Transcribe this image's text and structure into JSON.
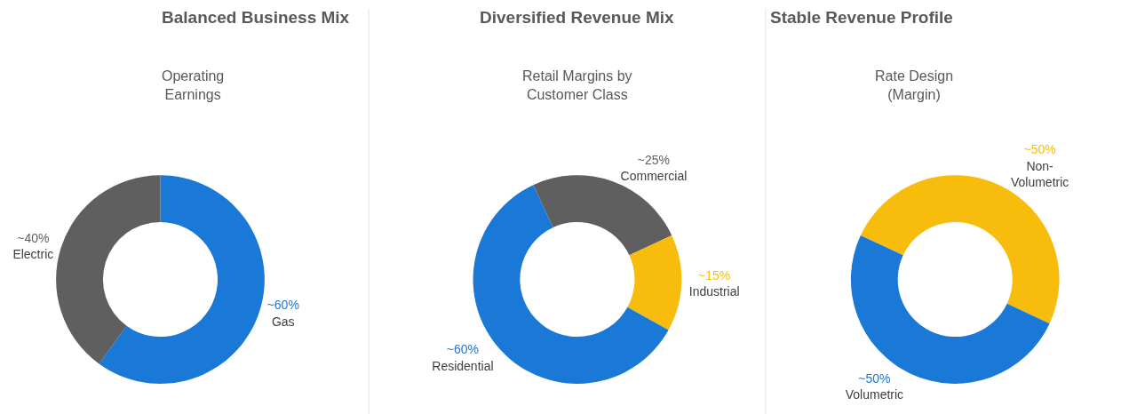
{
  "chart_data": [
    {
      "type": "donut",
      "title": "Balanced Business Mix",
      "subtitle": "Operating\nEarnings",
      "categories": [
        "Gas",
        "Electric"
      ],
      "values": [
        60,
        40
      ],
      "value_labels": [
        "~60%",
        "~40%"
      ],
      "colors": [
        "#1a78d6",
        "#5f5f5f"
      ]
    },
    {
      "type": "donut",
      "title": "Diversified Revenue Mix",
      "subtitle": "Retail Margins by\nCustomer Class",
      "categories": [
        "Commercial",
        "Industrial",
        "Residential"
      ],
      "values": [
        25,
        15,
        60
      ],
      "value_labels": [
        "~25%",
        "~15%",
        "~60%"
      ],
      "colors": [
        "#5f5f5f",
        "#f8bc0c",
        "#1a78d6"
      ]
    },
    {
      "type": "donut",
      "title": "Stable Revenue Profile",
      "subtitle": "Rate Design\n(Margin)",
      "categories": [
        "Non-\nVolumetric",
        "Volumetric"
      ],
      "values": [
        50,
        50
      ],
      "value_labels": [
        "~50%",
        "~50%"
      ],
      "colors": [
        "#f8bc0c",
        "#1a78d6"
      ]
    }
  ]
}
